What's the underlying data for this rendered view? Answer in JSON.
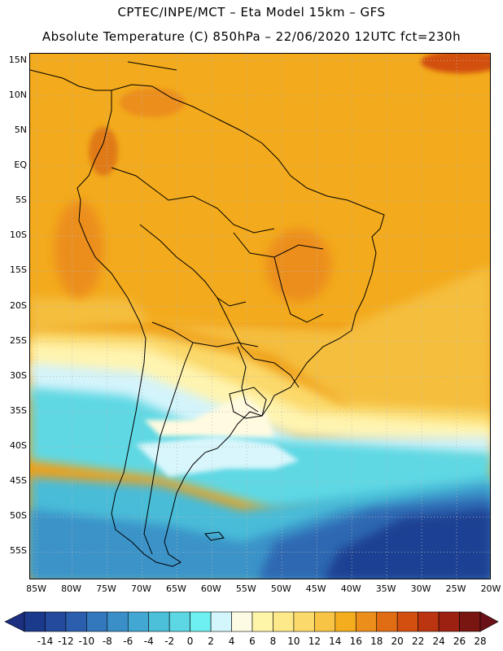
{
  "header": {
    "line1": "CPTEC/INPE/MCT –  Eta Model 15km – GFS",
    "line2": "Absolute Temperature (C) 850hPa – 22/06/2020 12UTC fct=230h"
  },
  "map": {
    "lon_range": [
      -86,
      -20
    ],
    "lat_range": [
      -59,
      16
    ],
    "lat_labels": [
      "15N",
      "10N",
      "5N",
      "EQ",
      "5S",
      "10S",
      "15S",
      "20S",
      "25S",
      "30S",
      "35S",
      "40S",
      "45S",
      "50S",
      "55S"
    ],
    "lat_values": [
      15,
      10,
      5,
      0,
      -5,
      -10,
      -15,
      -20,
      -25,
      -30,
      -35,
      -40,
      -45,
      -50,
      -55
    ],
    "lon_labels": [
      "85W",
      "80W",
      "75W",
      "70W",
      "65W",
      "60W",
      "55W",
      "50W",
      "45W",
      "40W",
      "35W",
      "30W",
      "25W",
      "20W"
    ],
    "lon_values": [
      -85,
      -80,
      -75,
      -70,
      -65,
      -60,
      -55,
      -50,
      -45,
      -40,
      -35,
      -30,
      -25,
      -20
    ],
    "gridlines": "dotted"
  },
  "colorbar": {
    "labels": [
      "-14",
      "-12",
      "-10",
      "-8",
      "-6",
      "-4",
      "-2",
      "0",
      "2",
      "4",
      "6",
      "8",
      "10",
      "12",
      "14",
      "16",
      "18",
      "20",
      "22",
      "24",
      "26",
      "28"
    ],
    "colors": [
      "#1b3a8c",
      "#234a9c",
      "#2b5fae",
      "#3377bd",
      "#3a8fc8",
      "#42a7d2",
      "#4cbfd9",
      "#5cd7e3",
      "#6ef0f0",
      "#d2f6fb",
      "#fdfbe3",
      "#fff5a8",
      "#fde98a",
      "#fbd96a",
      "#f7c446",
      "#f3ad1e",
      "#ec8e1a",
      "#e06c14",
      "#d24f10",
      "#bb3510",
      "#9c2111",
      "#7a1612"
    ],
    "under_color": "#1c2f80",
    "over_color": "#6a1016"
  }
}
